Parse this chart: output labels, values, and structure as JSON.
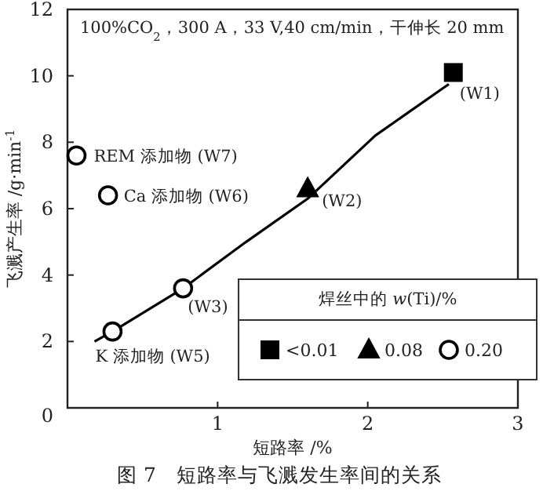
{
  "chart_data": {
    "type": "scatter",
    "title": "图 7　短路率与飞溅发生率间的关系",
    "xlabel": "短路率 /%",
    "ylabel": "飞溅产生率 /g·min$^{-1}$",
    "legend_title": "焊丝中的 *w*(Ti)/%",
    "legend": "bottom right",
    "xlim": [
      0,
      3
    ],
    "ylim": [
      0,
      12
    ],
    "xticks": [
      1,
      2,
      3
    ],
    "yticks": [
      0,
      2,
      4,
      6,
      8,
      10,
      12
    ],
    "series": [
      {
        "name": "<0.01",
        "color": "#000000",
        "marker": "square",
        "x": [
          2.57
        ],
        "values": [
          10.1
        ]
      },
      {
        "name": "0.08",
        "color": "#000000",
        "marker": "triangle",
        "x": [
          1.6
        ],
        "values": [
          6.6
        ]
      },
      {
        "name": "0.20",
        "color": "#000000",
        "marker": "circle",
        "x": [
          0.77,
          0.3,
          0.27,
          0.06
        ],
        "values": [
          3.6,
          2.3,
          6.4,
          7.6
        ]
      },
      {
        "type": "line",
        "color": "#000000",
        "x": [
          0.18,
          0.3,
          0.77,
          1.19,
          1.6,
          2.05,
          2.54
        ],
        "values": [
          2.0,
          2.3,
          3.6,
          5.0,
          6.3,
          8.2,
          9.75
        ]
      }
    ],
    "annotations": [
      "100%CO$_{2}$，300 A，33 V,40 cm/min，干伸长 20 mm",
      {
        "text": "(W1)",
        "x": 2.57,
        "y": 10.1
      },
      {
        "text": "(W2)",
        "x": 1.6,
        "y": 6.6
      },
      {
        "text": "(W3)",
        "x": 0.77,
        "y": 3.6
      },
      {
        "text": "K 添加物 (W5)",
        "x": 0.3,
        "y": 2.3
      },
      {
        "text": "Ca 添加物 (W6)",
        "x": 0.27,
        "y": 6.4
      },
      {
        "text": "REM 添加物 (W7)",
        "x": 0.06,
        "y": 7.6
      }
    ]
  }
}
